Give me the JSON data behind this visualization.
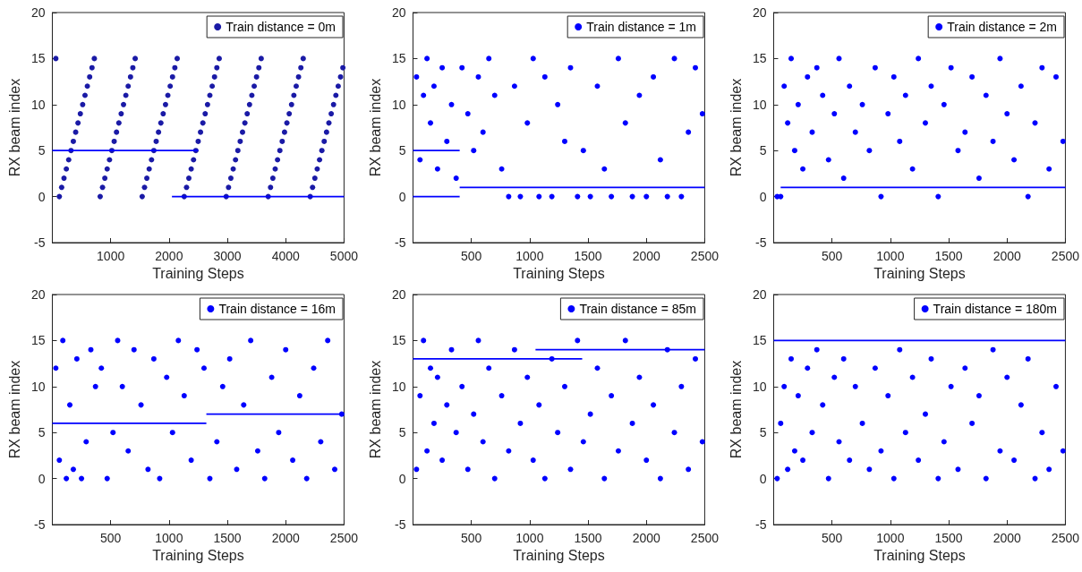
{
  "chart_data": [
    {
      "type": "scatter",
      "xlabel": "Training Steps",
      "ylabel": "RX beam index",
      "xlim": [
        0,
        5000
      ],
      "xticks": [
        1000,
        2000,
        3000,
        4000,
        5000
      ],
      "ylim": [
        -5,
        20
      ],
      "yticks": [
        -5,
        0,
        5,
        10,
        15,
        20
      ],
      "legend": "top right",
      "marker": "circle",
      "grid": false,
      "series": [
        {
          "name": "Train distance = 0m",
          "color": "#1a1aa6",
          "x": [
            120,
            820,
            1540,
            2260,
            2980,
            3700,
            4420,
            160,
            860,
            1580,
            2300,
            3020,
            3740,
            4460,
            200,
            900,
            1620,
            2340,
            3060,
            3780,
            4500,
            240,
            940,
            1660,
            2380,
            3100,
            3820,
            4540,
            280,
            980,
            1700,
            2420,
            3140,
            3860,
            4580,
            320,
            1020,
            1740,
            2460,
            3180,
            3900,
            4620,
            360,
            1060,
            1780,
            2500,
            3220,
            3940,
            4660,
            400,
            1100,
            1820,
            2540,
            3260,
            3980,
            4700,
            440,
            1140,
            1860,
            2580,
            3300,
            4020,
            4740,
            480,
            1180,
            1900,
            2620,
            3340,
            4060,
            4780,
            520,
            1220,
            1940,
            2660,
            3380,
            4100,
            4820,
            560,
            1260,
            1980,
            2700,
            3420,
            4140,
            4860,
            600,
            1300,
            2020,
            2740,
            3460,
            4180,
            4900,
            640,
            1340,
            2060,
            2780,
            3500,
            4220,
            4940,
            680,
            1380,
            2100,
            2820,
            3540,
            4260,
            4980,
            60,
            720,
            1420,
            2140,
            2860,
            3580,
            4300
          ],
          "values": [
            0,
            0,
            0,
            0,
            0,
            0,
            0,
            1,
            1,
            1,
            1,
            1,
            1,
            1,
            2,
            2,
            2,
            2,
            2,
            2,
            2,
            3,
            3,
            3,
            3,
            3,
            3,
            3,
            4,
            4,
            4,
            4,
            4,
            4,
            4,
            5,
            5,
            5,
            5,
            5,
            5,
            5,
            6,
            6,
            6,
            6,
            6,
            6,
            6,
            7,
            7,
            7,
            7,
            7,
            7,
            7,
            8,
            8,
            8,
            8,
            8,
            8,
            8,
            9,
            9,
            9,
            9,
            9,
            9,
            9,
            10,
            10,
            10,
            10,
            10,
            10,
            10,
            11,
            11,
            11,
            11,
            11,
            11,
            11,
            12,
            12,
            12,
            12,
            12,
            12,
            12,
            13,
            13,
            13,
            13,
            13,
            13,
            13,
            14,
            14,
            14,
            14,
            14,
            14,
            14,
            15,
            15,
            15,
            15,
            15,
            15,
            15
          ]
        },
        {
          "type": "line",
          "marker": "none",
          "color": "#0000ff",
          "x": [
            0,
            2500
          ],
          "values": [
            5,
            5
          ]
        },
        {
          "type": "line",
          "marker": "none",
          "color": "#0000ff",
          "x": [
            2050,
            5000
          ],
          "values": [
            0,
            0
          ]
        }
      ]
    },
    {
      "type": "scatter",
      "xlabel": "Training Steps",
      "ylabel": "RX beam index",
      "xlim": [
        0,
        2500
      ],
      "xticks": [
        500,
        1000,
        1500,
        2000,
        2500
      ],
      "ylim": [
        -5,
        20
      ],
      "yticks": [
        -5,
        0,
        5,
        10,
        15,
        20
      ],
      "legend": "top right",
      "marker": "circle",
      "grid": false,
      "series": [
        {
          "name": "Train distance = 1m",
          "color": "#0000ff",
          "x": [
            30,
            60,
            90,
            120,
            150,
            180,
            210,
            250,
            290,
            330,
            370,
            420,
            470,
            520,
            560,
            600,
            650,
            700,
            760,
            820,
            870,
            920,
            980,
            1030,
            1080,
            1130,
            1190,
            1240,
            1300,
            1350,
            1410,
            1460,
            1520,
            1580,
            1640,
            1700,
            1760,
            1820,
            1880,
            1940,
            2000,
            2060,
            2120,
            2180,
            2240,
            2300,
            2360,
            2420,
            2480
          ],
          "values": [
            13,
            4,
            11,
            15,
            8,
            12,
            3,
            14,
            6,
            10,
            2,
            14,
            9,
            5,
            13,
            7,
            15,
            11,
            3,
            0,
            12,
            0,
            8,
            15,
            0,
            13,
            0,
            10,
            6,
            14,
            0,
            5,
            0,
            12,
            3,
            0,
            15,
            8,
            0,
            11,
            0,
            13,
            4,
            0,
            15,
            0,
            7,
            14,
            9
          ]
        },
        {
          "type": "line",
          "marker": "none",
          "color": "#0000ff",
          "x": [
            0,
            400
          ],
          "values": [
            5,
            5
          ]
        },
        {
          "type": "line",
          "marker": "none",
          "color": "#0000ff",
          "x": [
            0,
            400
          ],
          "values": [
            0,
            0
          ]
        },
        {
          "type": "line",
          "marker": "none",
          "color": "#0000ff",
          "x": [
            400,
            2500
          ],
          "values": [
            1,
            1
          ]
        }
      ]
    },
    {
      "type": "scatter",
      "xlabel": "Training Steps",
      "ylabel": "RX beam index",
      "xlim": [
        0,
        2500
      ],
      "xticks": [
        500,
        1000,
        1500,
        2000,
        2500
      ],
      "ylim": [
        -5,
        20
      ],
      "yticks": [
        -5,
        0,
        5,
        10,
        15,
        20
      ],
      "legend": "top right",
      "marker": "circle",
      "grid": false,
      "series": [
        {
          "name": "Train distance = 2m",
          "color": "#0000ff",
          "x": [
            30,
            60,
            90,
            120,
            150,
            180,
            210,
            250,
            290,
            330,
            370,
            420,
            470,
            520,
            560,
            600,
            650,
            700,
            760,
            820,
            870,
            920,
            980,
            1030,
            1080,
            1130,
            1190,
            1240,
            1300,
            1350,
            1410,
            1460,
            1520,
            1580,
            1640,
            1700,
            1760,
            1820,
            1880,
            1940,
            2000,
            2060,
            2120,
            2180,
            2240,
            2300,
            2360,
            2420,
            2480
          ],
          "values": [
            0,
            0,
            12,
            8,
            15,
            5,
            10,
            3,
            13,
            7,
            14,
            11,
            4,
            9,
            15,
            2,
            12,
            7,
            10,
            5,
            14,
            0,
            9,
            13,
            6,
            11,
            3,
            15,
            8,
            12,
            0,
            10,
            14,
            5,
            7,
            13,
            2,
            11,
            6,
            15,
            9,
            4,
            12,
            0,
            8,
            14,
            3,
            13,
            6
          ]
        },
        {
          "type": "line",
          "marker": "none",
          "color": "#0000ff",
          "x": [
            60,
            2500
          ],
          "values": [
            1,
            1
          ]
        }
      ]
    },
    {
      "type": "scatter",
      "xlabel": "Training Steps",
      "ylabel": "RX beam index",
      "xlim": [
        0,
        2500
      ],
      "xticks": [
        500,
        1000,
        1500,
        2000,
        2500
      ],
      "ylim": [
        -5,
        20
      ],
      "yticks": [
        -5,
        0,
        5,
        10,
        15,
        20
      ],
      "legend": "top right",
      "marker": "circle",
      "grid": false,
      "series": [
        {
          "name": "Train distance = 16m",
          "color": "#0000ff",
          "x": [
            30,
            60,
            90,
            120,
            150,
            180,
            210,
            250,
            290,
            330,
            370,
            420,
            470,
            520,
            560,
            600,
            650,
            700,
            760,
            820,
            870,
            920,
            980,
            1030,
            1080,
            1130,
            1190,
            1240,
            1300,
            1350,
            1410,
            1460,
            1520,
            1580,
            1640,
            1700,
            1760,
            1820,
            1880,
            1940,
            2000,
            2060,
            2120,
            2180,
            2240,
            2300,
            2360,
            2420,
            2480
          ],
          "values": [
            12,
            2,
            15,
            0,
            8,
            1,
            13,
            0,
            4,
            14,
            10,
            12,
            0,
            5,
            15,
            10,
            3,
            14,
            8,
            1,
            13,
            0,
            11,
            5,
            15,
            9,
            2,
            14,
            12,
            0,
            4,
            10,
            13,
            1,
            8,
            15,
            3,
            0,
            11,
            5,
            14,
            2,
            9,
            0,
            12,
            4,
            15,
            1,
            7
          ]
        },
        {
          "type": "line",
          "marker": "none",
          "color": "#0000ff",
          "x": [
            0,
            1320
          ],
          "values": [
            6,
            6
          ]
        },
        {
          "type": "line",
          "marker": "none",
          "color": "#0000ff",
          "x": [
            1320,
            2500
          ],
          "values": [
            7,
            7
          ]
        }
      ]
    },
    {
      "type": "scatter",
      "xlabel": "Training Steps",
      "ylabel": "RX beam index",
      "xlim": [
        0,
        2500
      ],
      "xticks": [
        500,
        1000,
        1500,
        2000,
        2500
      ],
      "ylim": [
        -5,
        20
      ],
      "yticks": [
        -5,
        0,
        5,
        10,
        15,
        20
      ],
      "legend": "top right",
      "marker": "circle",
      "grid": false,
      "series": [
        {
          "name": "Train distance = 85m",
          "color": "#0000ff",
          "x": [
            30,
            60,
            90,
            120,
            150,
            180,
            210,
            250,
            290,
            330,
            370,
            420,
            470,
            520,
            560,
            600,
            650,
            700,
            760,
            820,
            870,
            920,
            980,
            1030,
            1080,
            1130,
            1190,
            1240,
            1300,
            1350,
            1410,
            1460,
            1520,
            1580,
            1640,
            1700,
            1760,
            1820,
            1880,
            1940,
            2000,
            2060,
            2120,
            2180,
            2240,
            2300,
            2360,
            2420,
            2480
          ],
          "values": [
            1,
            9,
            15,
            3,
            12,
            6,
            11,
            2,
            8,
            14,
            5,
            10,
            1,
            7,
            15,
            4,
            12,
            0,
            9,
            3,
            14,
            6,
            11,
            2,
            8,
            0,
            13,
            5,
            10,
            1,
            15,
            4,
            7,
            12,
            0,
            9,
            3,
            15,
            6,
            11,
            2,
            8,
            0,
            14,
            5,
            10,
            1,
            13,
            4
          ]
        },
        {
          "type": "line",
          "marker": "none",
          "color": "#0000ff",
          "x": [
            0,
            1450
          ],
          "values": [
            13,
            13
          ]
        },
        {
          "type": "line",
          "marker": "none",
          "color": "#0000ff",
          "x": [
            1050,
            2500
          ],
          "values": [
            14,
            14
          ]
        }
      ]
    },
    {
      "type": "scatter",
      "xlabel": "Training Steps",
      "ylabel": "RX beam index",
      "xlim": [
        0,
        2500
      ],
      "xticks": [
        500,
        1000,
        1500,
        2000,
        2500
      ],
      "ylim": [
        -5,
        20
      ],
      "yticks": [
        -5,
        0,
        5,
        10,
        15,
        20
      ],
      "legend": "top right",
      "marker": "circle",
      "grid": false,
      "series": [
        {
          "name": "Train distance = 180m",
          "color": "#0000ff",
          "x": [
            30,
            60,
            90,
            120,
            150,
            180,
            210,
            250,
            290,
            330,
            370,
            420,
            470,
            520,
            560,
            600,
            650,
            700,
            760,
            820,
            870,
            920,
            980,
            1030,
            1080,
            1130,
            1190,
            1240,
            1300,
            1350,
            1410,
            1460,
            1520,
            1580,
            1640,
            1700,
            1760,
            1820,
            1880,
            1940,
            2000,
            2060,
            2120,
            2180,
            2240,
            2300,
            2360,
            2420,
            2480
          ],
          "values": [
            0,
            6,
            10,
            1,
            13,
            3,
            9,
            2,
            12,
            5,
            14,
            8,
            0,
            11,
            4,
            13,
            2,
            10,
            6,
            1,
            12,
            3,
            9,
            0,
            14,
            5,
            11,
            2,
            7,
            13,
            0,
            4,
            10,
            1,
            12,
            6,
            9,
            0,
            14,
            3,
            11,
            2,
            8,
            13,
            0,
            5,
            1,
            10,
            3
          ]
        },
        {
          "type": "line",
          "marker": "none",
          "color": "#0000ff",
          "x": [
            0,
            2500
          ],
          "values": [
            15,
            15
          ]
        }
      ]
    }
  ]
}
